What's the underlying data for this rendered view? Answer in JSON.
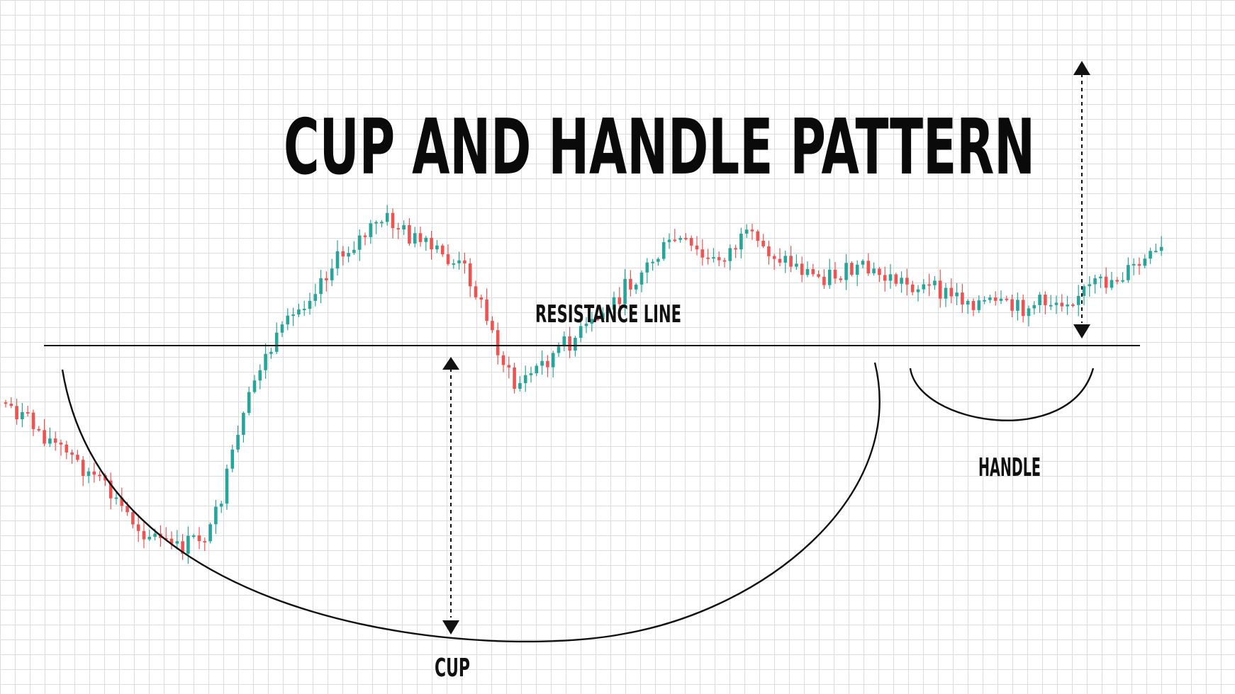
{
  "title": "CUP AND HANDLE PATTERN",
  "labels": {
    "resistance": "RESISTANCE LINE",
    "cup": "CUP",
    "handle": "HANDLE"
  },
  "colors": {
    "bullish": "#26a69a",
    "bearish": "#ef5350",
    "ink": "#111111",
    "grid": "#dcdcdc"
  },
  "price_path": [
    [
      0,
      0.3
    ],
    [
      0.04,
      0.36
    ],
    [
      0.08,
      0.42
    ],
    [
      0.12,
      0.5
    ],
    [
      0.15,
      0.53
    ],
    [
      0.18,
      0.5
    ],
    [
      0.22,
      0.25
    ],
    [
      0.27,
      0.12
    ],
    [
      0.3,
      0.06
    ],
    [
      0.33,
      0.02
    ],
    [
      0.36,
      0.06
    ],
    [
      0.4,
      0.1
    ],
    [
      0.44,
      0.28
    ],
    [
      0.48,
      0.22
    ],
    [
      0.51,
      0.18
    ],
    [
      0.55,
      0.1
    ],
    [
      0.58,
      0.05
    ],
    [
      0.61,
      0.09
    ],
    [
      0.64,
      0.05
    ],
    [
      0.67,
      0.08
    ],
    [
      0.7,
      0.11
    ],
    [
      0.74,
      0.1
    ],
    [
      0.78,
      0.12
    ],
    [
      0.82,
      0.14
    ],
    [
      0.87,
      0.16
    ],
    [
      0.92,
      0.14
    ],
    [
      0.96,
      0.11
    ],
    [
      1.0,
      0.07
    ]
  ]
}
